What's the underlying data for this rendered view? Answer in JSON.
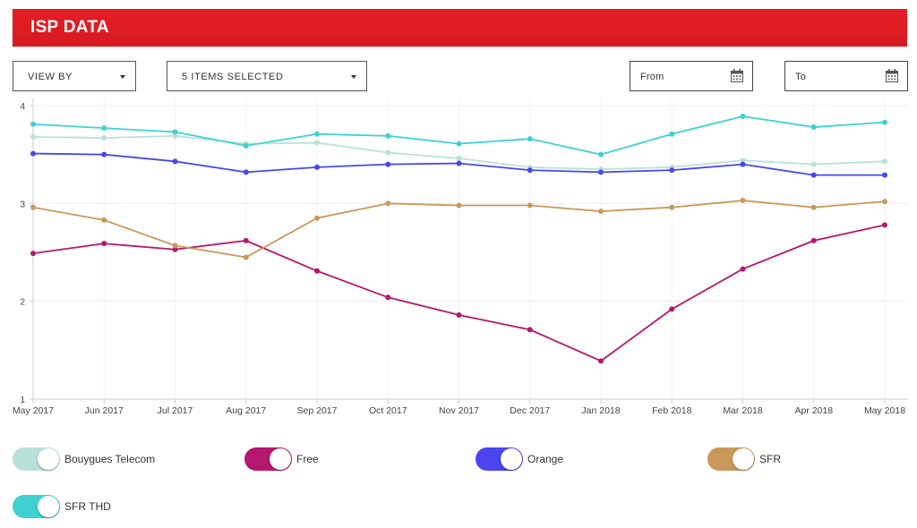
{
  "header": {
    "title": "ISP DATA"
  },
  "controls": {
    "view_by": "VIEW BY",
    "items_selected": "5 ITEMS SELECTED",
    "from_placeholder": "From",
    "to_placeholder": "To"
  },
  "chart_data": {
    "type": "line",
    "title": "",
    "xlabel": "",
    "ylabel": "",
    "ylim": [
      1,
      4
    ],
    "yticks": [
      1,
      2,
      3,
      4
    ],
    "grid": true,
    "legend_position": "bottom",
    "categories": [
      "May 2017",
      "Jun 2017",
      "Jul 2017",
      "Aug 2017",
      "Sep 2017",
      "Oct 2017",
      "Nov 2017",
      "Dec 2017",
      "Jan 2018",
      "Feb 2018",
      "Mar 2018",
      "Apr 2018",
      "May 2018"
    ],
    "series": [
      {
        "name": "Bouygues Telecom",
        "color": "#b8e2d9",
        "values": [
          3.68,
          3.67,
          3.69,
          3.61,
          3.62,
          3.52,
          3.46,
          3.37,
          3.35,
          3.37,
          3.44,
          3.4,
          3.43
        ]
      },
      {
        "name": "Free",
        "color": "#b5176e",
        "values": [
          2.49,
          2.59,
          2.53,
          2.62,
          2.31,
          2.04,
          1.86,
          1.71,
          1.39,
          1.92,
          2.33,
          2.62,
          2.78
        ]
      },
      {
        "name": "Orange",
        "color": "#4a45ee",
        "values": [
          3.51,
          3.5,
          3.43,
          3.32,
          3.37,
          3.4,
          3.41,
          3.34,
          3.32,
          3.34,
          3.4,
          3.29,
          3.29
        ]
      },
      {
        "name": "SFR",
        "color": "#c9995c",
        "values": [
          2.96,
          2.83,
          2.57,
          2.45,
          2.85,
          3.0,
          2.98,
          2.98,
          2.92,
          2.96,
          3.03,
          2.96,
          3.02
        ]
      },
      {
        "name": "SFR THD",
        "color": "#3fd1d1",
        "values": [
          3.81,
          3.77,
          3.73,
          3.59,
          3.71,
          3.69,
          3.61,
          3.66,
          3.5,
          3.71,
          3.89,
          3.78,
          3.83
        ]
      }
    ]
  }
}
